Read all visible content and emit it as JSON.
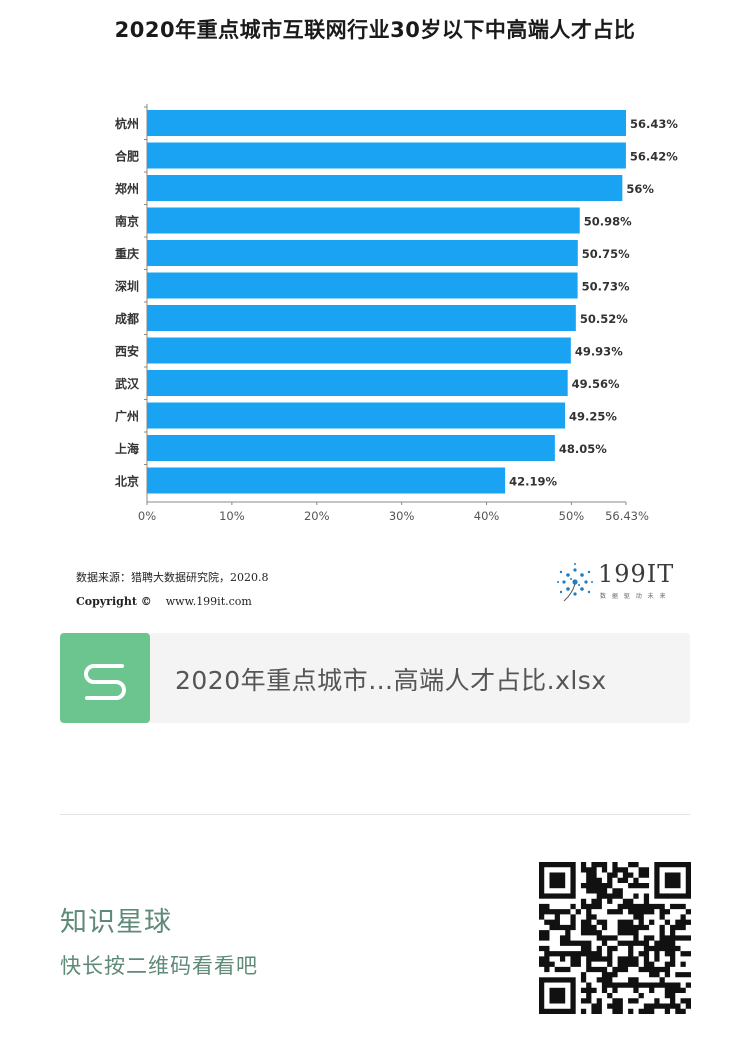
{
  "page_title": "2020年重点城市互联网行业30岁以下中高端人才占比",
  "chart_data": {
    "type": "bar",
    "orientation": "horizontal",
    "categories": [
      "杭州",
      "合肥",
      "郑州",
      "南京",
      "重庆",
      "深圳",
      "成都",
      "西安",
      "武汉",
      "广州",
      "上海",
      "北京"
    ],
    "values": [
      56.43,
      56.42,
      56,
      50.98,
      50.75,
      50.73,
      50.52,
      49.93,
      49.56,
      49.25,
      48.05,
      42.19
    ],
    "value_labels": [
      "56.43%",
      "56.42%",
      "56%",
      "50.98%",
      "50.75%",
      "50.73%",
      "50.52%",
      "49.93%",
      "49.56%",
      "49.25%",
      "48.05%",
      "42.19%"
    ],
    "xlim": [
      0,
      56.43
    ],
    "x_ticks": [
      0,
      10,
      20,
      30,
      40,
      50,
      56.43
    ],
    "x_tick_labels": [
      "0%",
      "10%",
      "20%",
      "30%",
      "40%",
      "50%",
      "56.43%"
    ],
    "bar_color": "#1aa3f2",
    "grid": false,
    "legend": "none"
  },
  "source": {
    "data_source": "数据来源：猎聘大数据研究院，2020.8",
    "copyright": "Copyright ©",
    "url": "www.199it.com"
  },
  "brand": {
    "name": "199IT",
    "slogan": "数 据 驱 动 未 来"
  },
  "file_card": {
    "icon": "spreadsheet-s-icon",
    "file_name": "2020年重点城市…高端人才占比.xlsx",
    "accent": "#6cc48f"
  },
  "planet": {
    "title": "知识星球",
    "subtitle": "快长按二维码看看吧",
    "color": "#5e8a78"
  },
  "qr": {
    "icon": "qr-code-icon"
  }
}
